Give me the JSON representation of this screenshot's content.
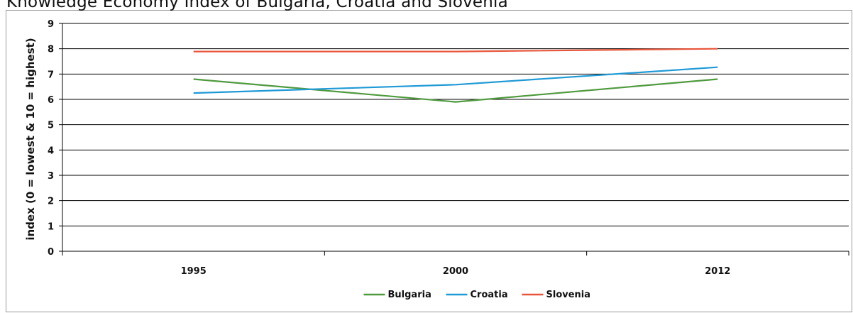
{
  "chart_data": {
    "type": "line",
    "title": "Knowledge Economy Index of Bulgaria, Croatia and Slovenia",
    "ylabel": "index (0 = lowest & 10 = highest)",
    "xlabel": "",
    "categories": [
      "1995",
      "2000",
      "2012"
    ],
    "ylim": [
      0,
      9
    ],
    "yticks": [
      "0",
      "1",
      "2",
      "3",
      "4",
      "5",
      "6",
      "7",
      "8",
      "9"
    ],
    "grid": true,
    "legend_position": "bottom",
    "series": [
      {
        "name": "Bulgaria",
        "color": "#4f9a3e",
        "values": [
          6.8,
          5.9,
          6.8
        ]
      },
      {
        "name": "Croatia",
        "color": "#1f9ad6",
        "values": [
          6.25,
          6.58,
          7.27
        ]
      },
      {
        "name": "Slovenia",
        "color": "#e8553a",
        "values": [
          7.89,
          7.89,
          8.0
        ]
      }
    ]
  }
}
